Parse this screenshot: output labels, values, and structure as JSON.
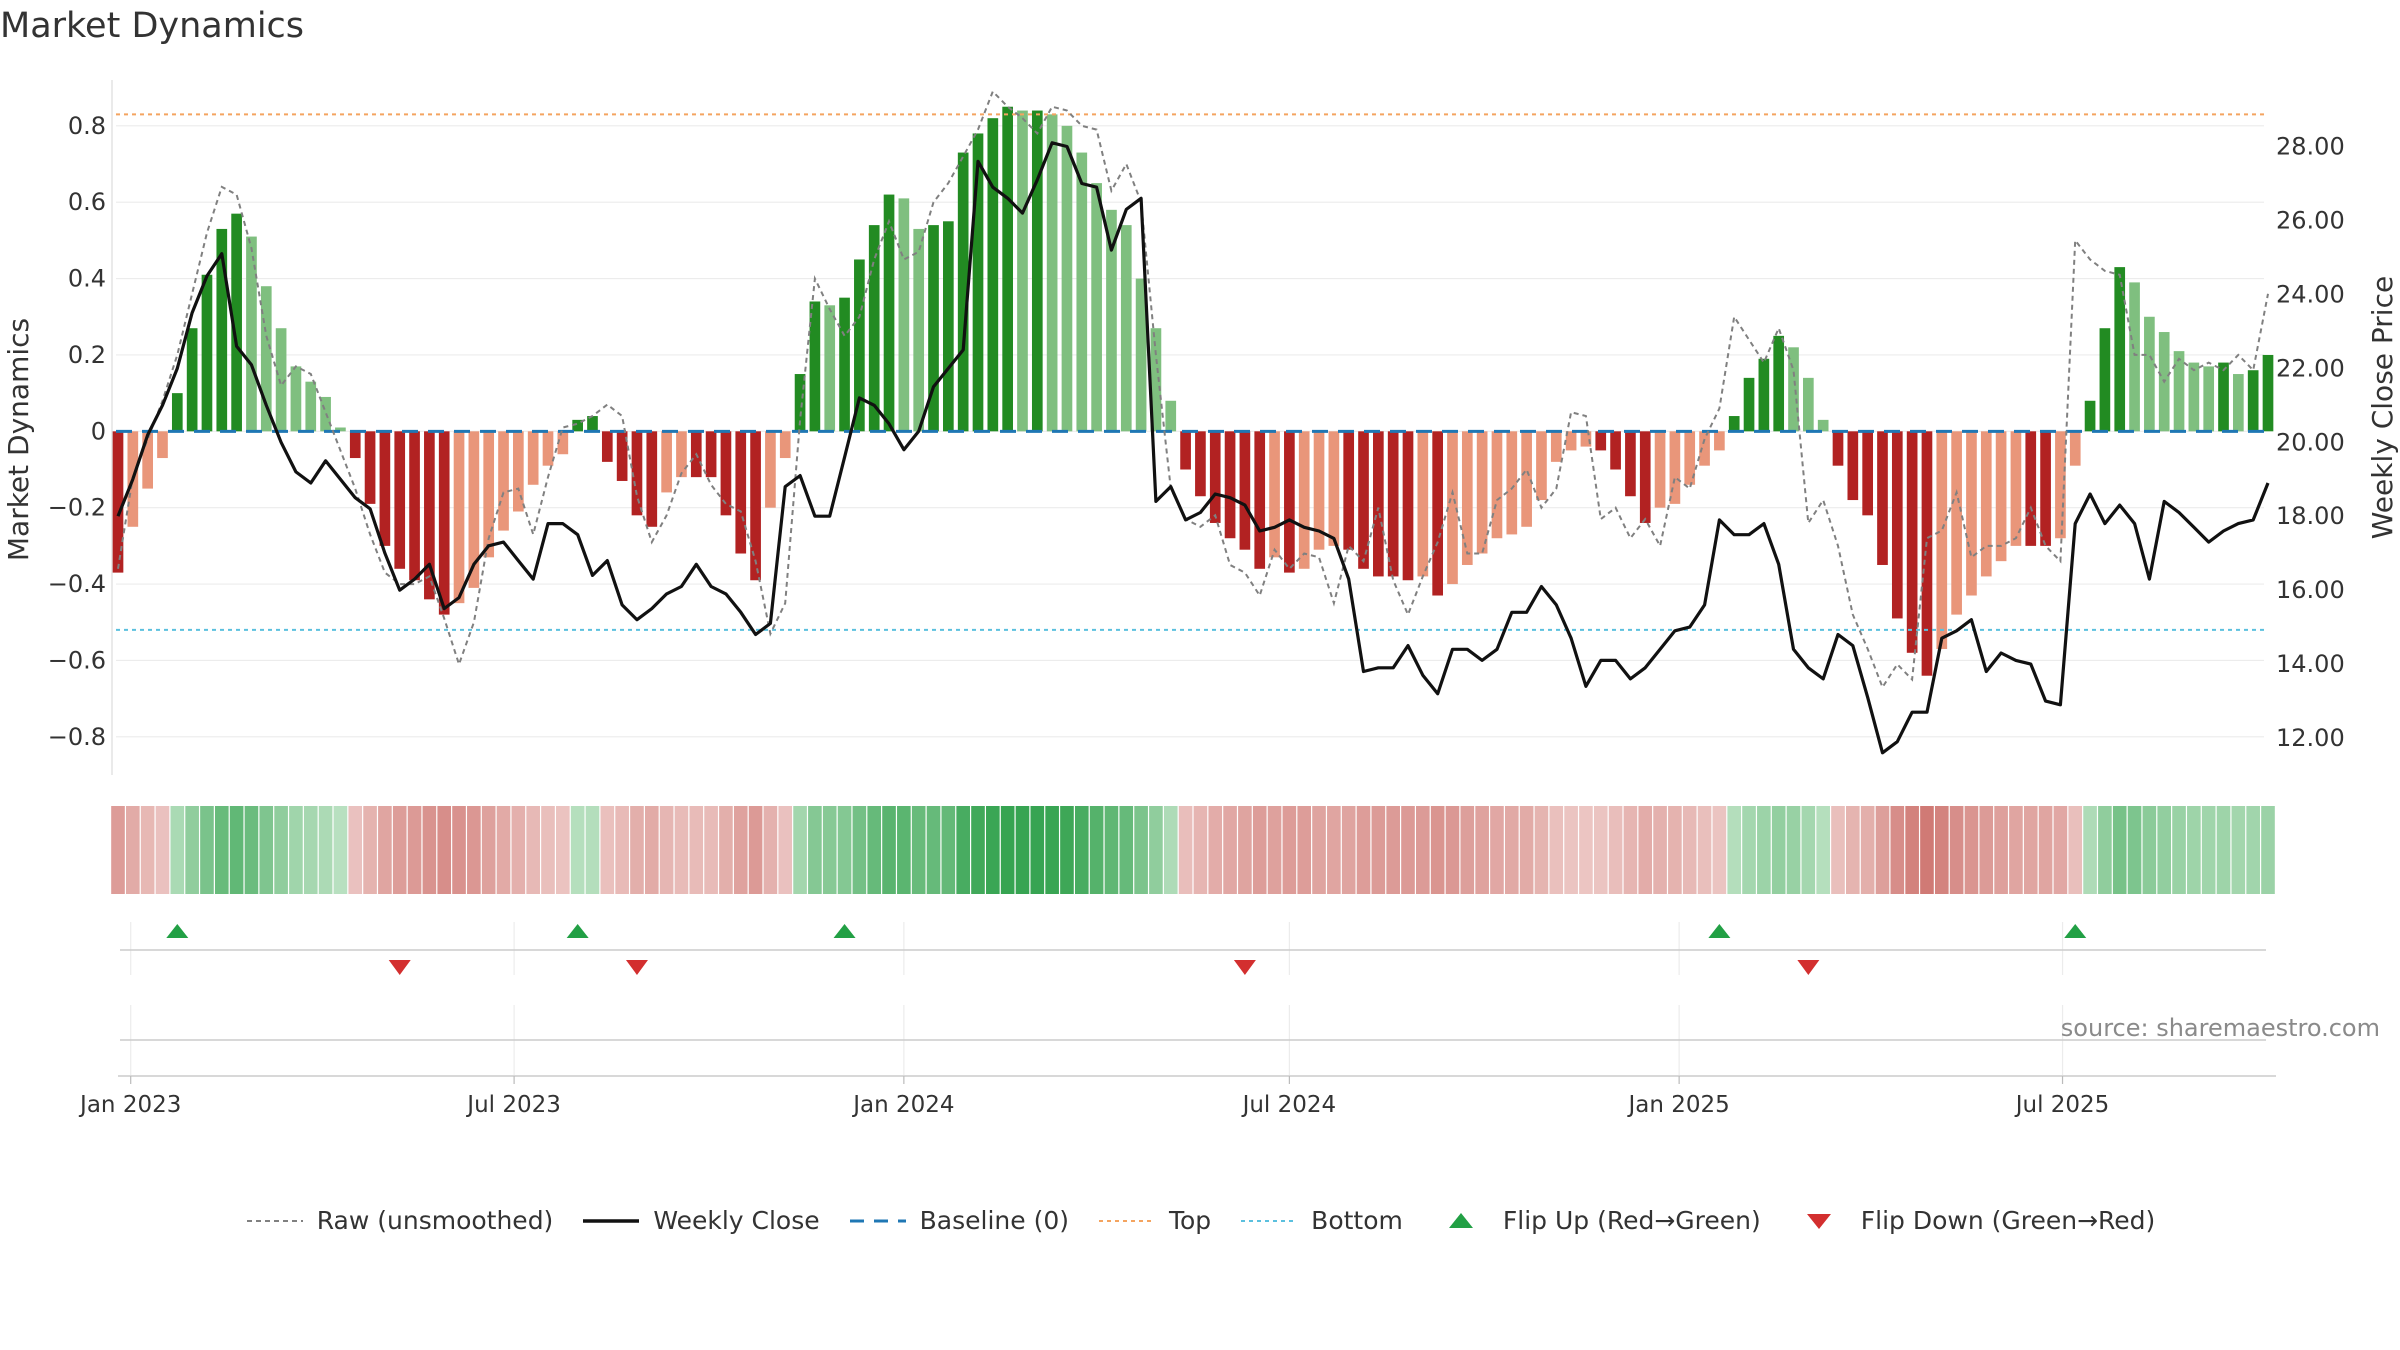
{
  "title": "Market Dynamics",
  "source": "source: sharemaestro.com",
  "colors": {
    "strong_green": "#228B22",
    "light_green": "#7FBF7F",
    "strong_red": "#B22222",
    "light_red": "#E9967A",
    "close_line": "#111111",
    "raw_line": "#808080",
    "baseline": "#1F77B4",
    "top": "#F4A460",
    "bottom": "#5BC0DE",
    "flip_up": "#22A045",
    "flip_down": "#D32F2F"
  },
  "legend": [
    {
      "key": "raw",
      "label": "Raw (unsmoothed)",
      "icon": "dotted-gray-line"
    },
    {
      "key": "close",
      "label": "Weekly Close",
      "icon": "solid-black-line"
    },
    {
      "key": "baseline",
      "label": "Baseline (0)",
      "icon": "dashed-blue-line"
    },
    {
      "key": "top",
      "label": "Top",
      "icon": "dotted-orange-line"
    },
    {
      "key": "bottom",
      "label": "Bottom",
      "icon": "dotted-cyan-line"
    },
    {
      "key": "flip_up",
      "label": "Flip Up (Red→Green)",
      "icon": "green-triangle-up"
    },
    {
      "key": "flip_down",
      "label": "Flip Down (Green→Red)",
      "icon": "red-triangle-down"
    }
  ],
  "chart_data": {
    "type": "bar",
    "title": "Market Dynamics",
    "ylabel": "Market Dynamics",
    "y2label": "Weekly Close Price",
    "ylim": [
      -0.9,
      0.92
    ],
    "y2lim": [
      11.0,
      29.8
    ],
    "yticks": [
      "0.8",
      "0.6",
      "0.4",
      "0.2",
      "0",
      "−0.2",
      "−0.4",
      "−0.6",
      "−0.8"
    ],
    "y2ticks": [
      "28.00",
      "26.00",
      "24.00",
      "22.00",
      "20.00",
      "18.00",
      "16.00",
      "14.00",
      "12.00"
    ],
    "x_start": "2022-12-26",
    "x_tick_labels": [
      "Jan 2023",
      "Jul 2023",
      "Jan 2024",
      "Jul 2024",
      "Jan 2025",
      "Jul 2025"
    ],
    "x_tick_dates": [
      "2023-01-01",
      "2023-07-01",
      "2024-01-01",
      "2024-07-01",
      "2025-01-01",
      "2025-07-01"
    ],
    "top_level": 0.83,
    "bottom_level": -0.52,
    "baseline": 0,
    "grid": true,
    "legend_position": "bottom-center",
    "series": [
      {
        "name": "Weekly Close",
        "axis": "right",
        "values": [
          18.0,
          19.0,
          20.2,
          21.0,
          22.0,
          23.5,
          24.5,
          25.1,
          22.6,
          22.1,
          21.0,
          20.0,
          19.2,
          18.9,
          19.5,
          19.0,
          18.5,
          18.2,
          17.0,
          16.0,
          16.3,
          16.7,
          15.5,
          15.8,
          16.7,
          17.2,
          17.3,
          16.8,
          16.3,
          17.8,
          17.8,
          17.5,
          16.4,
          16.8,
          15.6,
          15.2,
          15.5,
          15.9,
          16.1,
          16.7,
          16.1,
          15.9,
          15.4,
          14.8,
          15.1,
          18.8,
          19.1,
          18.0,
          18.0,
          19.6,
          21.2,
          21.0,
          20.5,
          19.8,
          20.3,
          21.5,
          22.0,
          22.5,
          27.6,
          26.9,
          26.6,
          26.2,
          27.1,
          28.1,
          28.0,
          27.0,
          26.9,
          25.2,
          26.3,
          26.6,
          18.4,
          18.8,
          17.9,
          18.1,
          18.6,
          18.5,
          18.3,
          17.6,
          17.7,
          17.9,
          17.7,
          17.6,
          17.4,
          16.3,
          13.8,
          13.9,
          13.9,
          14.5,
          13.7,
          13.2,
          14.4,
          14.4,
          14.1,
          14.4,
          15.4,
          15.4,
          16.1,
          15.6,
          14.7,
          13.4,
          14.1,
          14.1,
          13.6,
          13.9,
          14.4,
          14.9,
          15.0,
          15.6,
          17.9,
          17.5,
          17.5,
          17.8,
          16.7,
          14.4,
          13.9,
          13.6,
          14.8,
          14.5,
          13.1,
          11.6,
          11.9,
          12.7,
          12.7,
          14.7,
          14.9,
          15.2,
          13.8,
          14.3,
          14.1,
          14.0,
          13.0,
          12.9,
          17.8,
          18.6,
          17.8,
          18.3,
          17.8,
          16.3,
          18.4,
          18.1,
          17.7,
          17.3,
          17.6,
          17.8,
          17.9,
          18.9
        ]
      },
      {
        "name": "Raw (unsmoothed)",
        "axis": "left",
        "values": [
          -0.36,
          -0.12,
          -0.02,
          0.08,
          0.2,
          0.36,
          0.52,
          0.64,
          0.62,
          0.48,
          0.25,
          0.12,
          0.17,
          0.15,
          0.05,
          -0.05,
          -0.15,
          -0.27,
          -0.37,
          -0.4,
          -0.4,
          -0.38,
          -0.49,
          -0.61,
          -0.5,
          -0.28,
          -0.16,
          -0.15,
          -0.27,
          -0.12,
          0.01,
          0.02,
          0.04,
          0.07,
          0.04,
          -0.17,
          -0.29,
          -0.22,
          -0.11,
          -0.06,
          -0.14,
          -0.19,
          -0.21,
          -0.34,
          -0.53,
          -0.45,
          0.03,
          0.4,
          0.32,
          0.25,
          0.3,
          0.45,
          0.55,
          0.45,
          0.47,
          0.6,
          0.65,
          0.72,
          0.79,
          0.89,
          0.85,
          0.82,
          0.78,
          0.85,
          0.84,
          0.8,
          0.79,
          0.63,
          0.7,
          0.6,
          0.2,
          -0.15,
          -0.23,
          -0.25,
          -0.22,
          -0.35,
          -0.37,
          -0.43,
          -0.31,
          -0.36,
          -0.32,
          -0.33,
          -0.45,
          -0.3,
          -0.34,
          -0.2,
          -0.39,
          -0.48,
          -0.38,
          -0.29,
          -0.16,
          -0.32,
          -0.32,
          -0.18,
          -0.15,
          -0.1,
          -0.2,
          -0.15,
          0.05,
          0.04,
          -0.23,
          -0.2,
          -0.28,
          -0.23,
          -0.3,
          -0.12,
          -0.15,
          -0.02,
          0.06,
          0.3,
          0.24,
          0.18,
          0.27,
          0.16,
          -0.24,
          -0.18,
          -0.3,
          -0.48,
          -0.57,
          -0.67,
          -0.61,
          -0.65,
          -0.28,
          -0.26,
          -0.16,
          -0.33,
          -0.3,
          -0.3,
          -0.28,
          -0.2,
          -0.3,
          -0.34,
          0.5,
          0.45,
          0.42,
          0.41,
          0.2,
          0.2,
          0.13,
          0.19,
          0.16,
          0.18,
          0.16,
          0.2,
          0.16,
          0.36
        ]
      },
      {
        "name": "Market Dynamics",
        "axis": "left",
        "values": [
          -0.37,
          -0.25,
          -0.15,
          -0.07,
          0.1,
          0.27,
          0.41,
          0.53,
          0.57,
          0.51,
          0.38,
          0.27,
          0.17,
          0.13,
          0.09,
          0.01,
          -0.07,
          -0.19,
          -0.3,
          -0.36,
          -0.39,
          -0.44,
          -0.48,
          -0.45,
          -0.41,
          -0.33,
          -0.26,
          -0.21,
          -0.14,
          -0.09,
          -0.06,
          0.03,
          0.04,
          -0.08,
          -0.13,
          -0.22,
          -0.25,
          -0.16,
          -0.12,
          -0.12,
          -0.12,
          -0.22,
          -0.32,
          -0.39,
          -0.2,
          -0.07,
          0.15,
          0.34,
          0.33,
          0.35,
          0.45,
          0.54,
          0.62,
          0.61,
          0.53,
          0.54,
          0.55,
          0.73,
          0.78,
          0.82,
          0.85,
          0.84,
          0.84,
          0.83,
          0.8,
          0.73,
          0.65,
          0.58,
          0.54,
          0.4,
          0.27,
          0.08,
          -0.1,
          -0.17,
          -0.24,
          -0.28,
          -0.31,
          -0.36,
          -0.33,
          -0.37,
          -0.36,
          -0.31,
          -0.3,
          -0.31,
          -0.36,
          -0.38,
          -0.38,
          -0.39,
          -0.38,
          -0.43,
          -0.4,
          -0.35,
          -0.32,
          -0.28,
          -0.27,
          -0.25,
          -0.18,
          -0.08,
          -0.05,
          -0.04,
          -0.05,
          -0.1,
          -0.17,
          -0.24,
          -0.2,
          -0.19,
          -0.14,
          -0.09,
          -0.05,
          0.04,
          0.14,
          0.19,
          0.25,
          0.22,
          0.14,
          0.03,
          -0.09,
          -0.18,
          -0.22,
          -0.35,
          -0.49,
          -0.58,
          -0.64,
          -0.57,
          -0.48,
          -0.43,
          -0.38,
          -0.34,
          -0.3,
          -0.3,
          -0.3,
          -0.28,
          -0.09,
          0.08,
          0.27,
          0.43,
          0.39,
          0.3,
          0.26,
          0.21,
          0.18,
          0.17,
          0.18,
          0.15,
          0.16,
          0.2
        ]
      }
    ],
    "flip_up_dates": [
      "2023-01-23",
      "2023-07-31",
      "2023-12-04",
      "2025-01-20",
      "2025-07-07"
    ],
    "flip_down_dates": [
      "2023-05-08",
      "2023-08-28",
      "2024-06-10",
      "2025-03-03"
    ]
  }
}
